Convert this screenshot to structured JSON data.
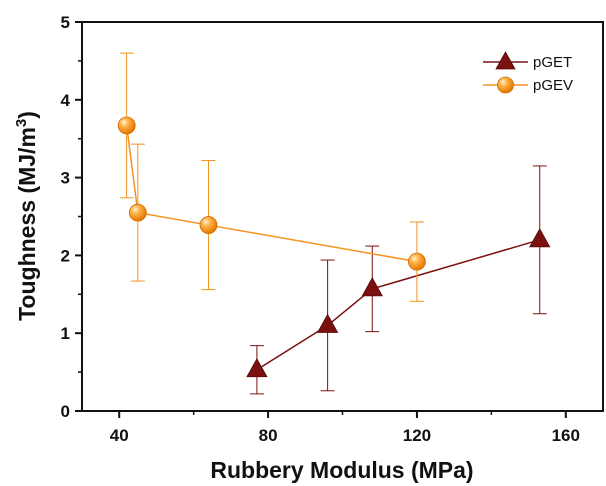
{
  "chart_data": {
    "type": "line",
    "xlabel": "Rubbery Modulus (MPa)",
    "ylabel": "Toughness (MJ/m",
    "ylabel_sup": "3",
    "ylabel_close": ")",
    "xlim": [
      30,
      170
    ],
    "ylim": [
      0,
      5
    ],
    "x_ticks": [
      40,
      80,
      120,
      160
    ],
    "y_ticks": [
      0,
      1,
      2,
      3,
      4,
      5
    ],
    "x_tick_labels": [
      "40",
      "80",
      "120",
      "160"
    ],
    "y_tick_labels": [
      "0",
      "1",
      "2",
      "3",
      "4",
      "5"
    ],
    "legend_position": "top-right",
    "series": [
      {
        "name": "pGET",
        "marker": "triangle",
        "color": "#7a1010",
        "points": [
          {
            "x": 77,
            "y": 0.53,
            "err_low": 0.31,
            "err_high": 0.31
          },
          {
            "x": 96,
            "y": 1.1,
            "err_low": 0.84,
            "err_high": 0.84
          },
          {
            "x": 108,
            "y": 1.57,
            "err_low": 0.55,
            "err_high": 0.55
          },
          {
            "x": 153,
            "y": 2.2,
            "err_low": 0.95,
            "err_high": 0.95
          }
        ]
      },
      {
        "name": "pGEV",
        "marker": "sphere",
        "color": "#f5921e",
        "points": [
          {
            "x": 42,
            "y": 3.67,
            "err_low": 0.93,
            "err_high": 0.93
          },
          {
            "x": 45,
            "y": 2.55,
            "err_low": 0.88,
            "err_high": 0.88
          },
          {
            "x": 64,
            "y": 2.39,
            "err_low": 0.83,
            "err_high": 0.83
          },
          {
            "x": 120,
            "y": 1.92,
            "err_low": 0.51,
            "err_high": 0.51
          }
        ]
      }
    ]
  }
}
